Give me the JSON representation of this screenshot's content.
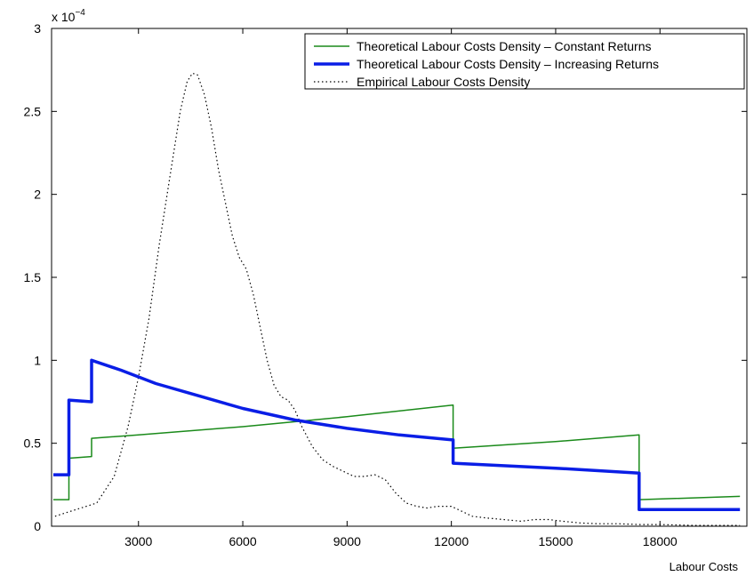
{
  "chart_data": {
    "type": "line",
    "title": "",
    "xlabel": "Labour Costs",
    "ylabel": "",
    "y_scale_label": "x 10",
    "y_scale_exponent": "−4",
    "xlim": [
      500,
      20500
    ],
    "ylim": [
      0,
      3
    ],
    "x_ticks": [
      3000,
      6000,
      9000,
      12000,
      15000,
      18000
    ],
    "x_tick_labels": [
      "3000",
      "6000",
      "9000",
      "12000",
      "15000",
      "18000"
    ],
    "y_ticks": [
      0,
      0.5,
      1,
      1.5,
      2,
      2.5,
      3
    ],
    "y_tick_labels": [
      "0",
      "0.5",
      "1",
      "1.5",
      "2",
      "2.5",
      "3"
    ],
    "grid": false,
    "legend_position": "top-right",
    "series": [
      {
        "name": "Theoretical Labour Costs Density – Constant Returns",
        "color": "#1a8a1a",
        "style": "solid",
        "width": 1.5,
        "x": [
          550,
          1000,
          1000,
          1650,
          1650,
          3000,
          6000,
          9000,
          12050,
          12050,
          15000,
          17400,
          17400,
          20300
        ],
        "y": [
          0.16,
          0.16,
          0.41,
          0.42,
          0.53,
          0.55,
          0.6,
          0.66,
          0.73,
          0.47,
          0.51,
          0.55,
          0.16,
          0.18
        ]
      },
      {
        "name": "Theoretical Labour Costs Density – Increasing Returns",
        "color": "#0a1ee6",
        "style": "solid",
        "width": 3.5,
        "x": [
          550,
          1000,
          1000,
          1650,
          1650,
          2500,
          3500,
          4500,
          6000,
          7500,
          9000,
          10500,
          12050,
          12050,
          15000,
          17400,
          17400,
          20300
        ],
        "y": [
          0.31,
          0.31,
          0.76,
          0.75,
          1.0,
          0.94,
          0.86,
          0.8,
          0.71,
          0.64,
          0.59,
          0.55,
          0.52,
          0.38,
          0.35,
          0.32,
          0.1,
          0.1
        ]
      },
      {
        "name": "Empirical Labour Costs Density",
        "color": "#000000",
        "style": "dotted",
        "width": 1.2,
        "x": [
          600,
          1200,
          1800,
          2300,
          2700,
          3000,
          3300,
          3600,
          3900,
          4200,
          4400,
          4550,
          4700,
          4900,
          5100,
          5300,
          5500,
          5700,
          5900,
          6100,
          6300,
          6500,
          6700,
          6900,
          7100,
          7300,
          7500,
          7700,
          8000,
          8300,
          8600,
          8900,
          9200,
          9500,
          9800,
          10100,
          10400,
          10700,
          11000,
          11300,
          11600,
          12000,
          12300,
          12600,
          13000,
          13500,
          14000,
          14400,
          14800,
          15200,
          15700,
          16200,
          16800,
          17400,
          18000,
          19000,
          20300
        ],
        "y": [
          0.06,
          0.1,
          0.14,
          0.3,
          0.6,
          0.9,
          1.25,
          1.7,
          2.1,
          2.5,
          2.68,
          2.73,
          2.72,
          2.6,
          2.4,
          2.15,
          1.95,
          1.75,
          1.62,
          1.55,
          1.4,
          1.2,
          1.0,
          0.85,
          0.78,
          0.76,
          0.7,
          0.6,
          0.48,
          0.4,
          0.36,
          0.33,
          0.3,
          0.3,
          0.31,
          0.28,
          0.2,
          0.14,
          0.12,
          0.11,
          0.12,
          0.12,
          0.09,
          0.06,
          0.05,
          0.04,
          0.03,
          0.04,
          0.04,
          0.03,
          0.02,
          0.015,
          0.015,
          0.01,
          0.01,
          0.005,
          0.005
        ]
      }
    ]
  }
}
